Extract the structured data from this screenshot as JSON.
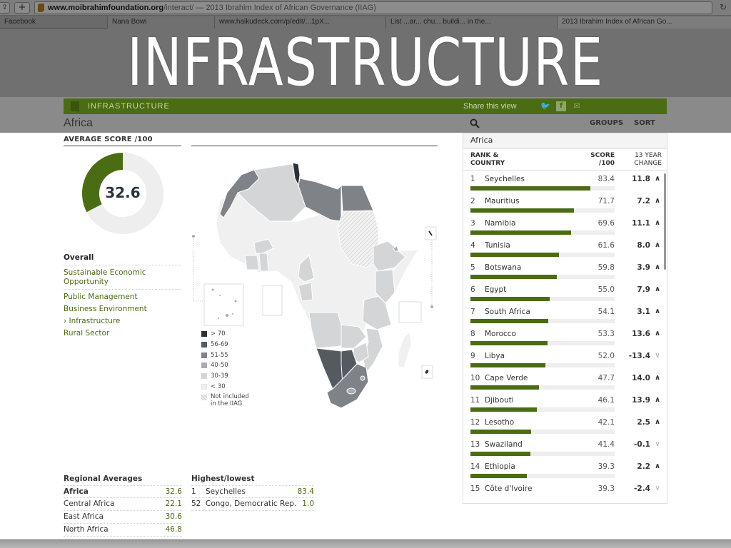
{
  "slide": {
    "title": "INFRASTRUCTURE"
  },
  "browser": {
    "url_host": "www.moibrahimfoundation.org",
    "url_rest": "/interact/ — 2013 Ibrahim Index of African Governance (IIAG)",
    "tabs": [
      {
        "label": "Facebook"
      },
      {
        "label": "Nana Bowi"
      },
      {
        "label": "www.haikudeck.com/p/edit/...1pX..."
      },
      {
        "label": "List ...ar... chu... buildi... in the..."
      },
      {
        "label": "2013 Ibrahim Index of African Go..."
      }
    ]
  },
  "header_bar": {
    "title": "INFRASTRUCTURE",
    "share_label": "Share this view",
    "icons": [
      "twitter-icon",
      "facebook-icon",
      "email-icon"
    ]
  },
  "page": {
    "heading": "Africa"
  },
  "average": {
    "label": "AVERAGE SCORE /100",
    "value": "32.6",
    "fraction": 0.326
  },
  "indicators": [
    {
      "label": "Overall",
      "type": "overall"
    },
    {
      "label": "Sustainable Economic Opportunity",
      "type": "sep"
    },
    {
      "label": "Public Management",
      "type": "normal"
    },
    {
      "label": "Business Environment",
      "type": "normal"
    },
    {
      "label": "› Infrastructure",
      "type": "normal"
    },
    {
      "label": "Rural Sector",
      "type": "normal"
    }
  ],
  "legend": [
    {
      "label": "> 70",
      "color": "#2c3138"
    },
    {
      "label": "56-69",
      "color": "#555a60"
    },
    {
      "label": "51-55",
      "color": "#7f8387"
    },
    {
      "label": "40-50",
      "color": "#a9abae"
    },
    {
      "label": "30-39",
      "color": "#d4d5d6"
    },
    {
      "label": "< 30",
      "color": "#f0f0f0"
    },
    {
      "label": "Not included in the IIAG",
      "color": "hatched"
    }
  ],
  "panel": {
    "groups_label": "GROUPS",
    "sort_label": "SORT",
    "region": "Africa",
    "col_rank": "RANK &",
    "col_rank2": "COUNTRY",
    "col_score": "SCORE",
    "col_score2": "/100",
    "col_change": "13 YEAR",
    "col_change2": "CHANGE",
    "rows": [
      {
        "rank": "1",
        "country": "Seychelles",
        "score": "83.4",
        "change": "11.8",
        "dir": "up",
        "value": 83.4
      },
      {
        "rank": "2",
        "country": "Mauritius",
        "score": "71.7",
        "change": "7.2",
        "dir": "up",
        "value": 71.7
      },
      {
        "rank": "3",
        "country": "Namibia",
        "score": "69.6",
        "change": "11.1",
        "dir": "up",
        "value": 69.6
      },
      {
        "rank": "4",
        "country": "Tunisia",
        "score": "61.6",
        "change": "8.0",
        "dir": "up",
        "value": 61.6
      },
      {
        "rank": "5",
        "country": "Botswana",
        "score": "59.8",
        "change": "3.9",
        "dir": "up",
        "value": 59.8
      },
      {
        "rank": "6",
        "country": "Egypt",
        "score": "55.0",
        "change": "7.9",
        "dir": "up",
        "value": 55.0
      },
      {
        "rank": "7",
        "country": "South Africa",
        "score": "54.1",
        "change": "3.1",
        "dir": "up",
        "value": 54.1
      },
      {
        "rank": "8",
        "country": "Morocco",
        "score": "53.3",
        "change": "13.6",
        "dir": "up",
        "value": 53.3
      },
      {
        "rank": "9",
        "country": "Libya",
        "score": "52.0",
        "change": "-13.4",
        "dir": "down",
        "value": 52.0
      },
      {
        "rank": "10",
        "country": "Cape Verde",
        "score": "47.7",
        "change": "14.0",
        "dir": "up",
        "value": 47.7
      },
      {
        "rank": "11",
        "country": "Djibouti",
        "score": "46.1",
        "change": "13.9",
        "dir": "up",
        "value": 46.1
      },
      {
        "rank": "12",
        "country": "Lesotho",
        "score": "42.1",
        "change": "2.5",
        "dir": "up",
        "value": 42.1
      },
      {
        "rank": "13",
        "country": "Swaziland",
        "score": "41.4",
        "change": "-0.1",
        "dir": "down",
        "value": 41.4
      },
      {
        "rank": "14",
        "country": "Ethiopia",
        "score": "39.3",
        "change": "2.2",
        "dir": "up",
        "value": 39.3
      },
      {
        "rank": "15",
        "country": "Côte d'Ivoire",
        "score": "39.3",
        "change": "-2.4",
        "dir": "down",
        "value": 39.3
      }
    ]
  },
  "regional": {
    "title": "Regional Averages",
    "rows": [
      {
        "label": "Africa",
        "value": "32.6",
        "bold": true
      },
      {
        "label": "Central Africa",
        "value": "22.1",
        "bold": false
      },
      {
        "label": "East Africa",
        "value": "30.6",
        "bold": false
      },
      {
        "label": "North Africa",
        "value": "46.8",
        "bold": false
      }
    ]
  },
  "highlow": {
    "title": "Highest/lowest",
    "rows": [
      {
        "rank": "1",
        "country": "Seychelles",
        "value": "83.4"
      },
      {
        "rank": "52",
        "country": "Congo, Democratic Rep.",
        "value": "1.0"
      }
    ]
  },
  "colors": {
    "accent": "#4a6c12",
    "track": "#eeeeee"
  }
}
